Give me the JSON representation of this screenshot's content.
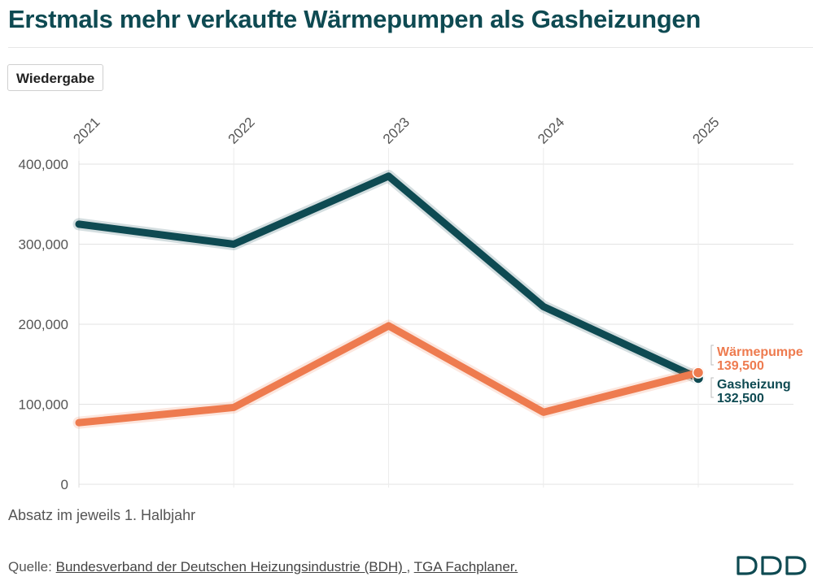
{
  "header": {
    "title": "Erstmals mehr verkaufte Wärmepumpen als Gasheizungen"
  },
  "controls": {
    "replay_label": "Wiedergabe"
  },
  "chart_data": {
    "type": "line",
    "categories": [
      "2021",
      "2022",
      "2023",
      "2024",
      "2025"
    ],
    "series": [
      {
        "name": "Gasheizung",
        "values": [
          325000,
          300000,
          385000,
          222000,
          132500
        ],
        "color": "#0e4a52",
        "end_label": "132,500"
      },
      {
        "name": "Wärmepumpe",
        "values": [
          77000,
          96000,
          198000,
          90000,
          139500
        ],
        "color": "#ee7b4f",
        "end_label": "139,500"
      }
    ],
    "ylim": [
      0,
      400000
    ],
    "yticks": [
      "0",
      "100,000",
      "200,000",
      "300,000",
      "400,000"
    ],
    "grid": true,
    "xlabel": "",
    "ylabel": ""
  },
  "footer": {
    "note": "Absatz im jeweils 1. Halbjahr",
    "source_prefix": "Quelle:",
    "source_link_1": "Bundesverband der Deutschen Heizungsindustrie (BDH) ",
    "source_separator": ", ",
    "source_link_2": "TGA Fachplaner.",
    "logo_icon": "ddd-logo-icon"
  }
}
